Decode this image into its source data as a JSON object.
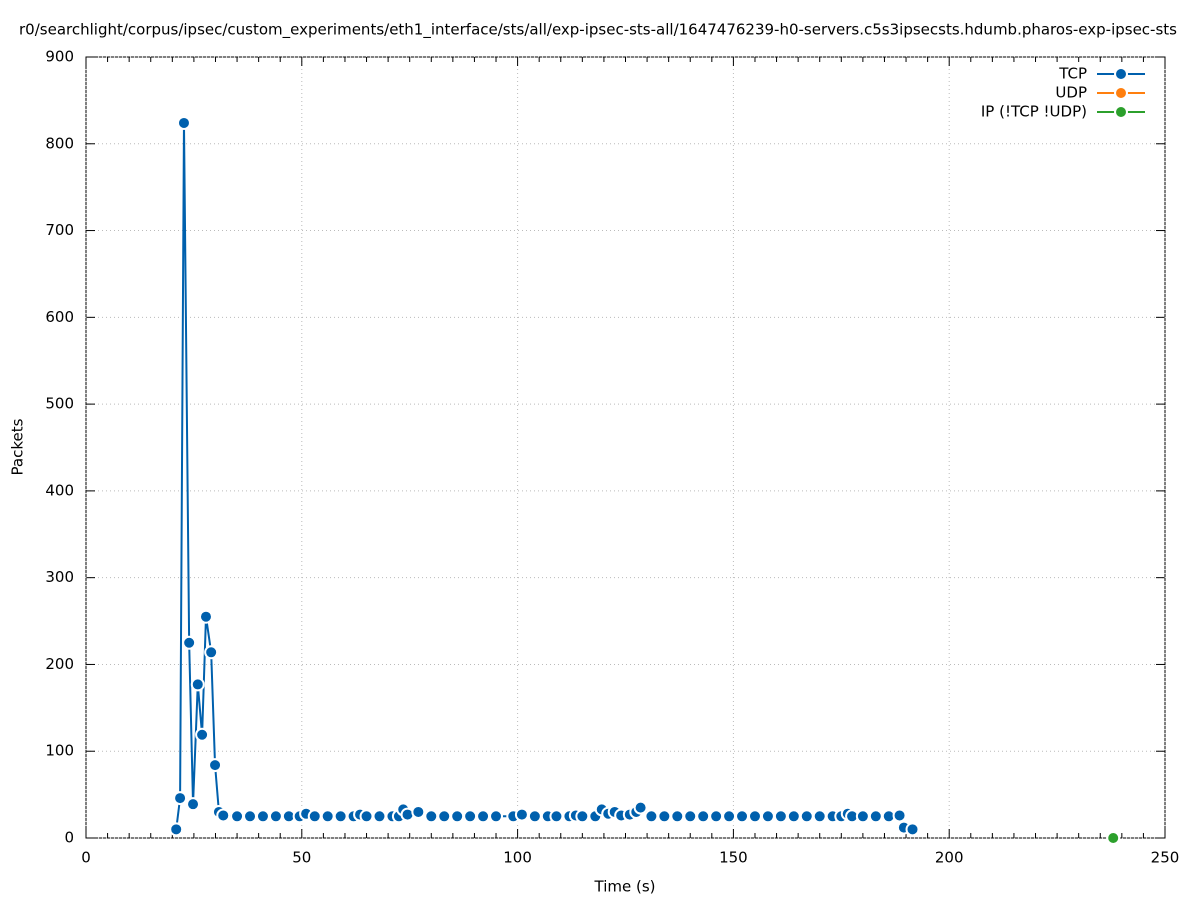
{
  "chart_data": {
    "type": "line",
    "title": "r0/searchlight/corpus/ipsec/custom_experiments/eth1_interface/sts/all/exp-ipsec-sts-all/1647476239-h0-servers.c5s3ipsecsts.hdumb.pharos-exp-ipsec-sts",
    "xlabel": "Time (s)",
    "ylabel": "Packets",
    "xlim": [
      0,
      250
    ],
    "xticks": [
      0,
      50,
      100,
      150,
      200,
      250
    ],
    "xminorstep": 5,
    "ylim": [
      0,
      900
    ],
    "yticks": [
      0,
      100,
      200,
      300,
      400,
      500,
      600,
      700,
      800,
      900
    ],
    "grid": true,
    "legend": "top-right",
    "series": [
      {
        "name": "TCP",
        "color": "#0060ad",
        "x": [
          20.9,
          21.8,
          22.7,
          23.9,
          24.8,
          25.9,
          26.9,
          27.8,
          29.0,
          29.9,
          30.8,
          31.8,
          35,
          38,
          41,
          44,
          47,
          49.5,
          51,
          53,
          56,
          59,
          62,
          63.5,
          65,
          68,
          71,
          72.5,
          73.5,
          74.5,
          77,
          80,
          83,
          86,
          89,
          92,
          95,
          99,
          101,
          104,
          107,
          109,
          112,
          113.5,
          115,
          118,
          119.5,
          121,
          122.5,
          124,
          126,
          127.5,
          128.5,
          131,
          134,
          137,
          140,
          143,
          146,
          149,
          152,
          155,
          158,
          161,
          164,
          167,
          170,
          173,
          175,
          176.5,
          177.5,
          180,
          183,
          186,
          188.5,
          189.5,
          191.5
        ],
        "values": [
          10,
          46,
          824,
          225,
          39,
          177,
          119,
          255,
          214,
          84,
          30,
          26,
          25,
          25,
          25,
          25,
          25,
          25,
          28,
          25,
          25,
          25,
          25,
          27,
          25,
          25,
          25,
          25,
          33,
          27,
          30,
          25,
          25,
          25,
          25,
          25,
          25,
          25,
          27,
          25,
          25,
          25,
          25,
          26,
          25,
          25,
          33,
          28,
          30,
          26,
          27,
          30,
          35,
          25,
          25,
          25,
          25,
          25,
          25,
          25,
          25,
          25,
          25,
          25,
          25,
          25,
          25,
          25,
          25,
          28,
          25,
          25,
          25,
          25,
          26,
          12,
          10
        ]
      },
      {
        "name": "UDP",
        "color": "#ff7f0e",
        "x": [],
        "values": []
      },
      {
        "name": "IP (!TCP  !UDP)",
        "color": "#2ca02c",
        "x": [
          238
        ],
        "values": [
          0
        ]
      }
    ]
  }
}
